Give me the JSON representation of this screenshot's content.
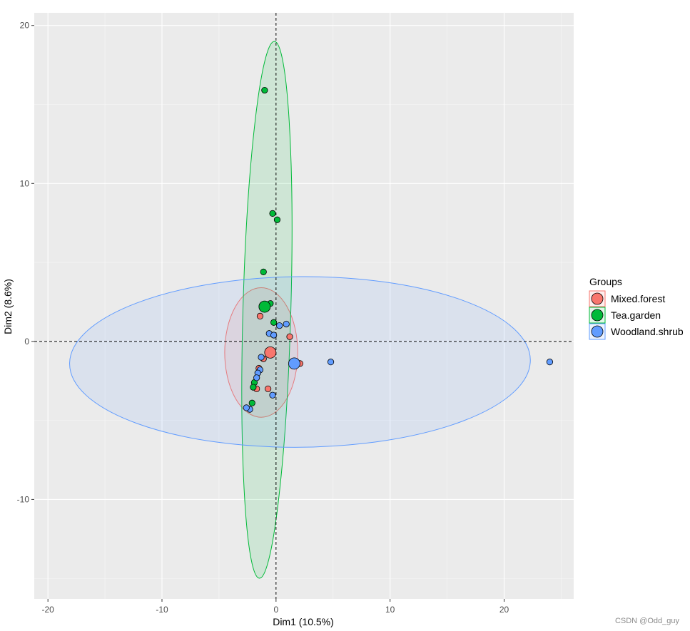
{
  "chart_data": {
    "type": "scatter",
    "title": "",
    "xlabel": "Dim1 (10.5%)",
    "ylabel": "Dim2 (8.6%)",
    "xlim": [
      -21.2,
      26.1
    ],
    "ylim": [
      -16.3,
      20.8
    ],
    "x_ticks": [
      -20,
      -10,
      0,
      10,
      20
    ],
    "y_ticks": [
      -10,
      0,
      10,
      20
    ],
    "grid": true,
    "reference_lines": {
      "x": 0,
      "y": 0,
      "style": "dashed"
    },
    "legend": {
      "title": "Groups",
      "position": "right"
    },
    "series": [
      {
        "name": "Mixed.forest",
        "color": "#F8766D",
        "points": [
          [
            -1.4,
            1.6
          ],
          [
            1.2,
            0.3
          ],
          [
            -1.1,
            -1.1
          ],
          [
            -1.5,
            -1.7
          ],
          [
            -1.7,
            -3.0
          ],
          [
            -0.7,
            -3.0
          ],
          [
            2.1,
            -1.4
          ]
        ],
        "centroid": [
          -0.5,
          -0.7
        ],
        "ellipse": {
          "cx": -1.3,
          "cy": -0.7,
          "rx": 3.2,
          "ry": 4.1,
          "angle": 0
        }
      },
      {
        "name": "Tea.garden",
        "color": "#00BA38",
        "points": [
          [
            -1.0,
            15.9
          ],
          [
            -0.3,
            8.1
          ],
          [
            0.1,
            7.7
          ],
          [
            -1.1,
            4.4
          ],
          [
            -0.5,
            2.4
          ],
          [
            -0.2,
            1.2
          ],
          [
            -1.9,
            -2.6
          ],
          [
            -2.0,
            -2.9
          ],
          [
            -2.1,
            -3.9
          ]
        ],
        "centroid": [
          -1.0,
          2.2
        ],
        "ellipse": {
          "cx": -0.8,
          "cy": 2.0,
          "rx": 2.1,
          "ry": 17.0,
          "angle": 1.6
        }
      },
      {
        "name": "Woodland.shrub",
        "color": "#619CFF",
        "points": [
          [
            0.9,
            1.1
          ],
          [
            0.3,
            1.0
          ],
          [
            -0.6,
            0.5
          ],
          [
            -0.2,
            0.4
          ],
          [
            -1.3,
            -1.0
          ],
          [
            -1.4,
            -1.8
          ],
          [
            -1.6,
            -2.0
          ],
          [
            -1.7,
            -2.3
          ],
          [
            -0.3,
            -3.4
          ],
          [
            -2.3,
            -4.3
          ],
          [
            -2.6,
            -4.2
          ],
          [
            4.8,
            -1.3
          ],
          [
            24.0,
            -1.3
          ]
        ],
        "centroid": [
          1.6,
          -1.4
        ],
        "ellipse": {
          "cx": 2.1,
          "cy": -1.3,
          "rx": 20.2,
          "ry": 5.4,
          "angle": -0.5
        }
      }
    ]
  },
  "watermark": "CSDN @Odd_guy"
}
